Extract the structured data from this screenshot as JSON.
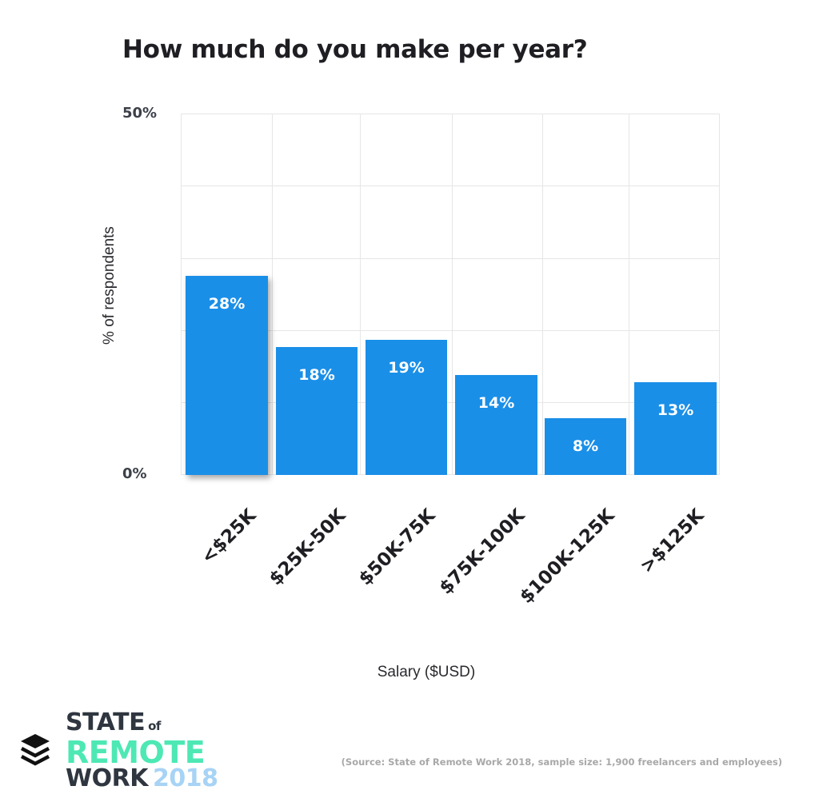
{
  "title": "How much do you make per year?",
  "y_axis": {
    "label": "% of respondents",
    "ticks": [
      "50%",
      "0%"
    ]
  },
  "x_axis": {
    "label": "Salary ($USD)"
  },
  "bars": [
    {
      "category": "<$25K",
      "value": 28,
      "label": "28%",
      "highlight": true
    },
    {
      "category": "$25K-50K",
      "value": 18,
      "label": "18%"
    },
    {
      "category": "$50K-75K",
      "value": 19,
      "label": "19%"
    },
    {
      "category": "$75K-100K",
      "value": 14,
      "label": "14%"
    },
    {
      "category": "$100K-125K",
      "value": 8,
      "label": "8%"
    },
    {
      "category": ">$125K",
      "value": 13,
      "label": "13%"
    }
  ],
  "colors": {
    "bar": "#1a8fe8",
    "logo_accent": "#4de8b4",
    "logo_year": "#a7d3f5",
    "text_dark": "#1e1e23"
  },
  "logo": {
    "line1": "STATE",
    "of": "of",
    "line2": "REMOTE",
    "line3": "WORK",
    "year": "2018"
  },
  "source": "(Source: State of Remote Work 2018, sample size: 1,900 freelancers and employees)",
  "chart_data": {
    "type": "bar",
    "title": "How much do you make per year?",
    "categories": [
      "<$25K",
      "$25K-50K",
      "$50K-75K",
      "$75K-100K",
      "$100K-125K",
      ">$125K"
    ],
    "values": [
      28,
      18,
      19,
      14,
      8,
      13
    ],
    "xlabel": "Salary ($USD)",
    "ylabel": "% of respondents",
    "ylim": [
      0,
      50
    ],
    "yticks": [
      "0%",
      "50%"
    ],
    "grid": true,
    "legend": null,
    "data_labels": [
      "28%",
      "18%",
      "19%",
      "14%",
      "8%",
      "13%"
    ]
  }
}
